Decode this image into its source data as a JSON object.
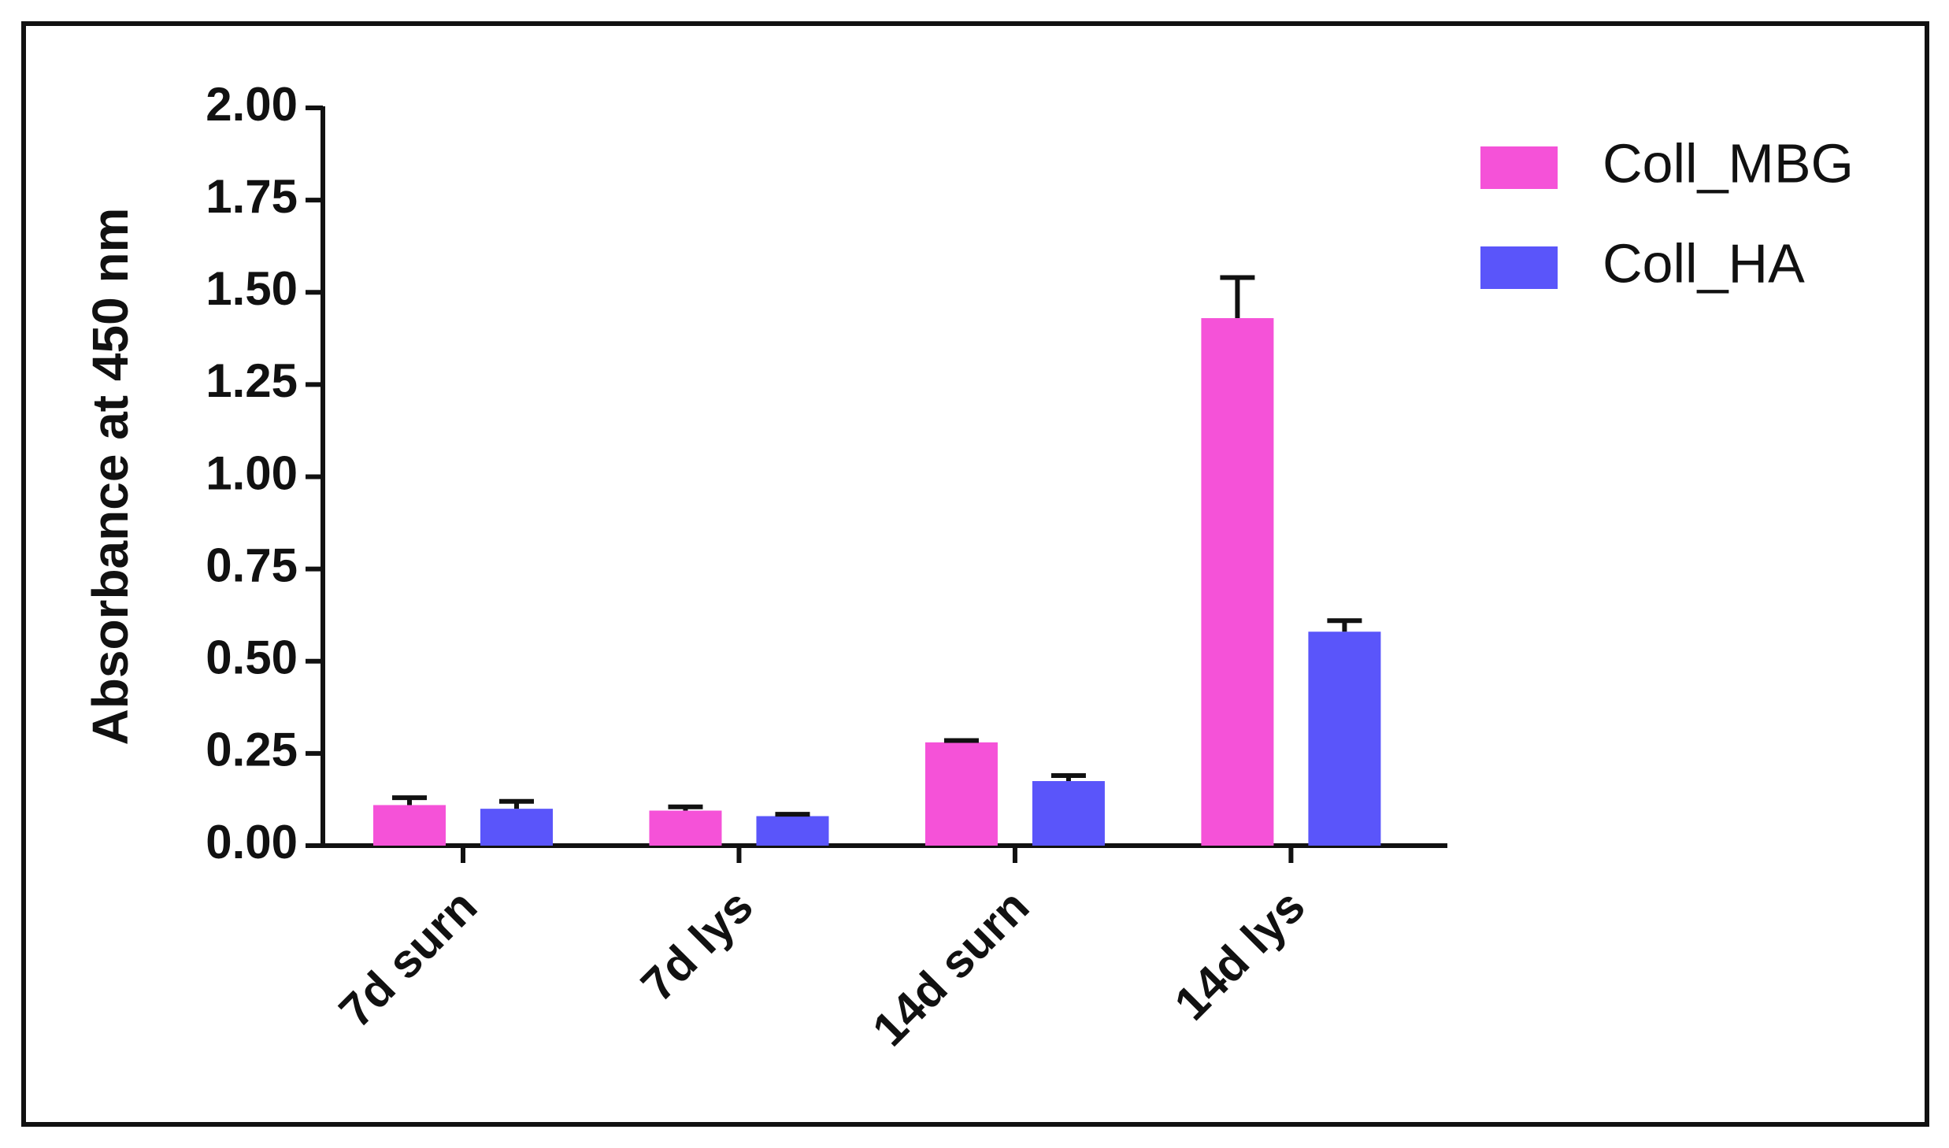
{
  "chart_data": {
    "type": "bar",
    "y_label": "Absorbance at 450 nm",
    "categories": [
      "7d surn",
      "7d lys",
      "14d surn",
      "14d lys"
    ],
    "series": [
      {
        "name": "Coll_MBG",
        "color": "#f552d8",
        "values": [
          0.11,
          0.095,
          0.28,
          1.43
        ],
        "errors": [
          0.02,
          0.01,
          0.005,
          0.11
        ]
      },
      {
        "name": "Coll_HA",
        "color": "#5a55fa",
        "values": [
          0.1,
          0.08,
          0.175,
          0.58
        ],
        "errors": [
          0.02,
          0.005,
          0.015,
          0.03
        ]
      }
    ],
    "ylim": [
      0,
      2
    ],
    "yticks": [
      {
        "value": 0,
        "label": "0.00"
      },
      {
        "value": 0.25,
        "label": "0.25"
      },
      {
        "value": 0.5,
        "label": "0.50"
      },
      {
        "value": 0.75,
        "label": "0.75"
      },
      {
        "value": 1,
        "label": "1.00"
      },
      {
        "value": 1.25,
        "label": "1.25"
      },
      {
        "value": 1.5,
        "label": "1.50"
      },
      {
        "value": 1.75,
        "label": "1.75"
      },
      {
        "value": 2,
        "label": "2.00"
      }
    ],
    "legend": "top-right"
  }
}
